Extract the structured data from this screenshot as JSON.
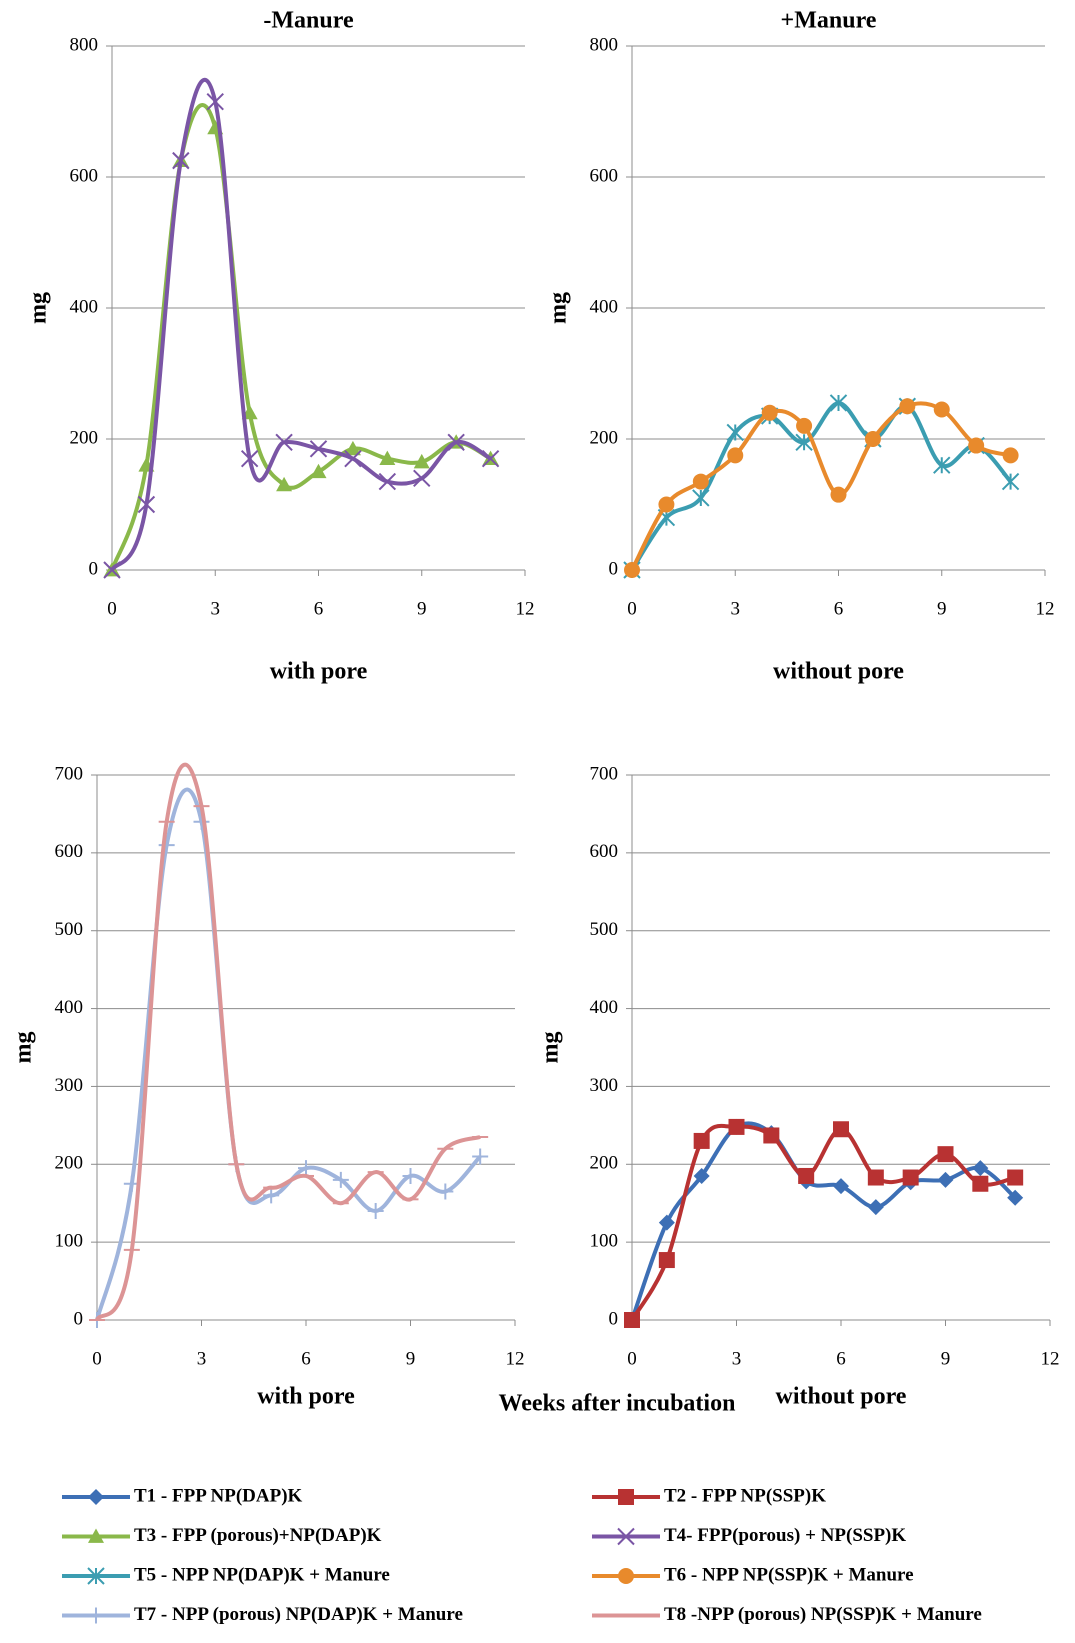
{
  "chart_data": [
    {
      "type": "line",
      "title": "-Manure",
      "xlabel": "with pore",
      "ylabel": "mg",
      "xlim": [
        0,
        12
      ],
      "xticks": [
        0,
        3,
        6,
        9,
        12
      ],
      "ylim": [
        0,
        800
      ],
      "yticks": [
        0,
        200,
        400,
        600,
        800
      ],
      "grid": true,
      "x": [
        0,
        1,
        2,
        3,
        4,
        5,
        6,
        7,
        8,
        9,
        10,
        11
      ],
      "series": [
        {
          "name": "T3 - FPP (porous)+NP(DAP)K",
          "color": "#8ab84a",
          "marker": "triangle",
          "values": [
            0,
            160,
            625,
            675,
            240,
            130,
            150,
            185,
            170,
            165,
            195,
            170
          ]
        },
        {
          "name": "T4- FPP(porous) + NP(SSP)K",
          "color": "#7a55a5",
          "marker": "x",
          "values": [
            0,
            100,
            625,
            715,
            170,
            195,
            185,
            170,
            135,
            140,
            195,
            170
          ]
        }
      ]
    },
    {
      "type": "line",
      "title": "+Manure",
      "xlabel": "without pore",
      "ylabel": "mg",
      "xlim": [
        0,
        12
      ],
      "xticks": [
        0,
        3,
        6,
        9,
        12
      ],
      "ylim": [
        0,
        800
      ],
      "yticks": [
        0,
        200,
        400,
        600,
        800
      ],
      "grid": true,
      "x": [
        0,
        1,
        2,
        3,
        4,
        5,
        6,
        7,
        8,
        9,
        10,
        11
      ],
      "series": [
        {
          "name": "T5 - NPP NP(DAP)K  + Manure",
          "color": "#3b9db1",
          "marker": "asterisk",
          "values": [
            0,
            80,
            110,
            210,
            235,
            195,
            255,
            200,
            250,
            160,
            190,
            135
          ]
        },
        {
          "name": "T6 - NPP NP(SSP)K  + Manure",
          "color": "#e88a2c",
          "marker": "circle",
          "values": [
            0,
            100,
            135,
            175,
            240,
            220,
            115,
            200,
            250,
            245,
            190,
            175
          ]
        }
      ]
    },
    {
      "type": "line",
      "xlabel": "with pore",
      "ylabel": "mg",
      "annotations": [
        "Weeks after incubation"
      ],
      "xlim": [
        0,
        12
      ],
      "xticks": [
        0,
        3,
        6,
        9,
        12
      ],
      "ylim": [
        0,
        700
      ],
      "yticks": [
        0,
        100,
        200,
        300,
        400,
        500,
        600,
        700
      ],
      "grid": true,
      "x": [
        0,
        1,
        2,
        3,
        4,
        5,
        6,
        7,
        8,
        9,
        10,
        11
      ],
      "series": [
        {
          "name": "T7 - NPP (porous) NP(DAP)K  + Manure",
          "color": "#9fb4dc",
          "marker": "plus",
          "values": [
            0,
            175,
            610,
            640,
            200,
            160,
            195,
            180,
            140,
            185,
            165,
            210
          ]
        },
        {
          "name": "T8 -NPP  (porous) NP(SSP)K  + Manure",
          "color": "#dc9495",
          "marker": "dash",
          "values": [
            0,
            90,
            640,
            660,
            200,
            170,
            185,
            150,
            190,
            155,
            220,
            235
          ]
        }
      ]
    },
    {
      "type": "line",
      "xlabel": "without pore",
      "ylabel": "mg",
      "xlim": [
        0,
        12
      ],
      "xticks": [
        0,
        3,
        6,
        9,
        12
      ],
      "ylim": [
        0,
        700
      ],
      "yticks": [
        0,
        100,
        200,
        300,
        400,
        500,
        600,
        700
      ],
      "grid": true,
      "x": [
        0,
        1,
        2,
        3,
        4,
        5,
        6,
        7,
        8,
        9,
        10,
        11
      ],
      "series": [
        {
          "name": "T1 - FPP  NP(DAP)K",
          "color": "#3d6fb5",
          "marker": "diamond",
          "values": [
            0,
            125,
            185,
            248,
            240,
            178,
            172,
            145,
            177,
            180,
            195,
            157
          ]
        },
        {
          "name": "T2 - FPP NP(SSP)K",
          "color": "#b83232",
          "marker": "square",
          "values": [
            0,
            77,
            230,
            248,
            237,
            185,
            245,
            183,
            183,
            213,
            175,
            183
          ]
        }
      ]
    }
  ]
}
